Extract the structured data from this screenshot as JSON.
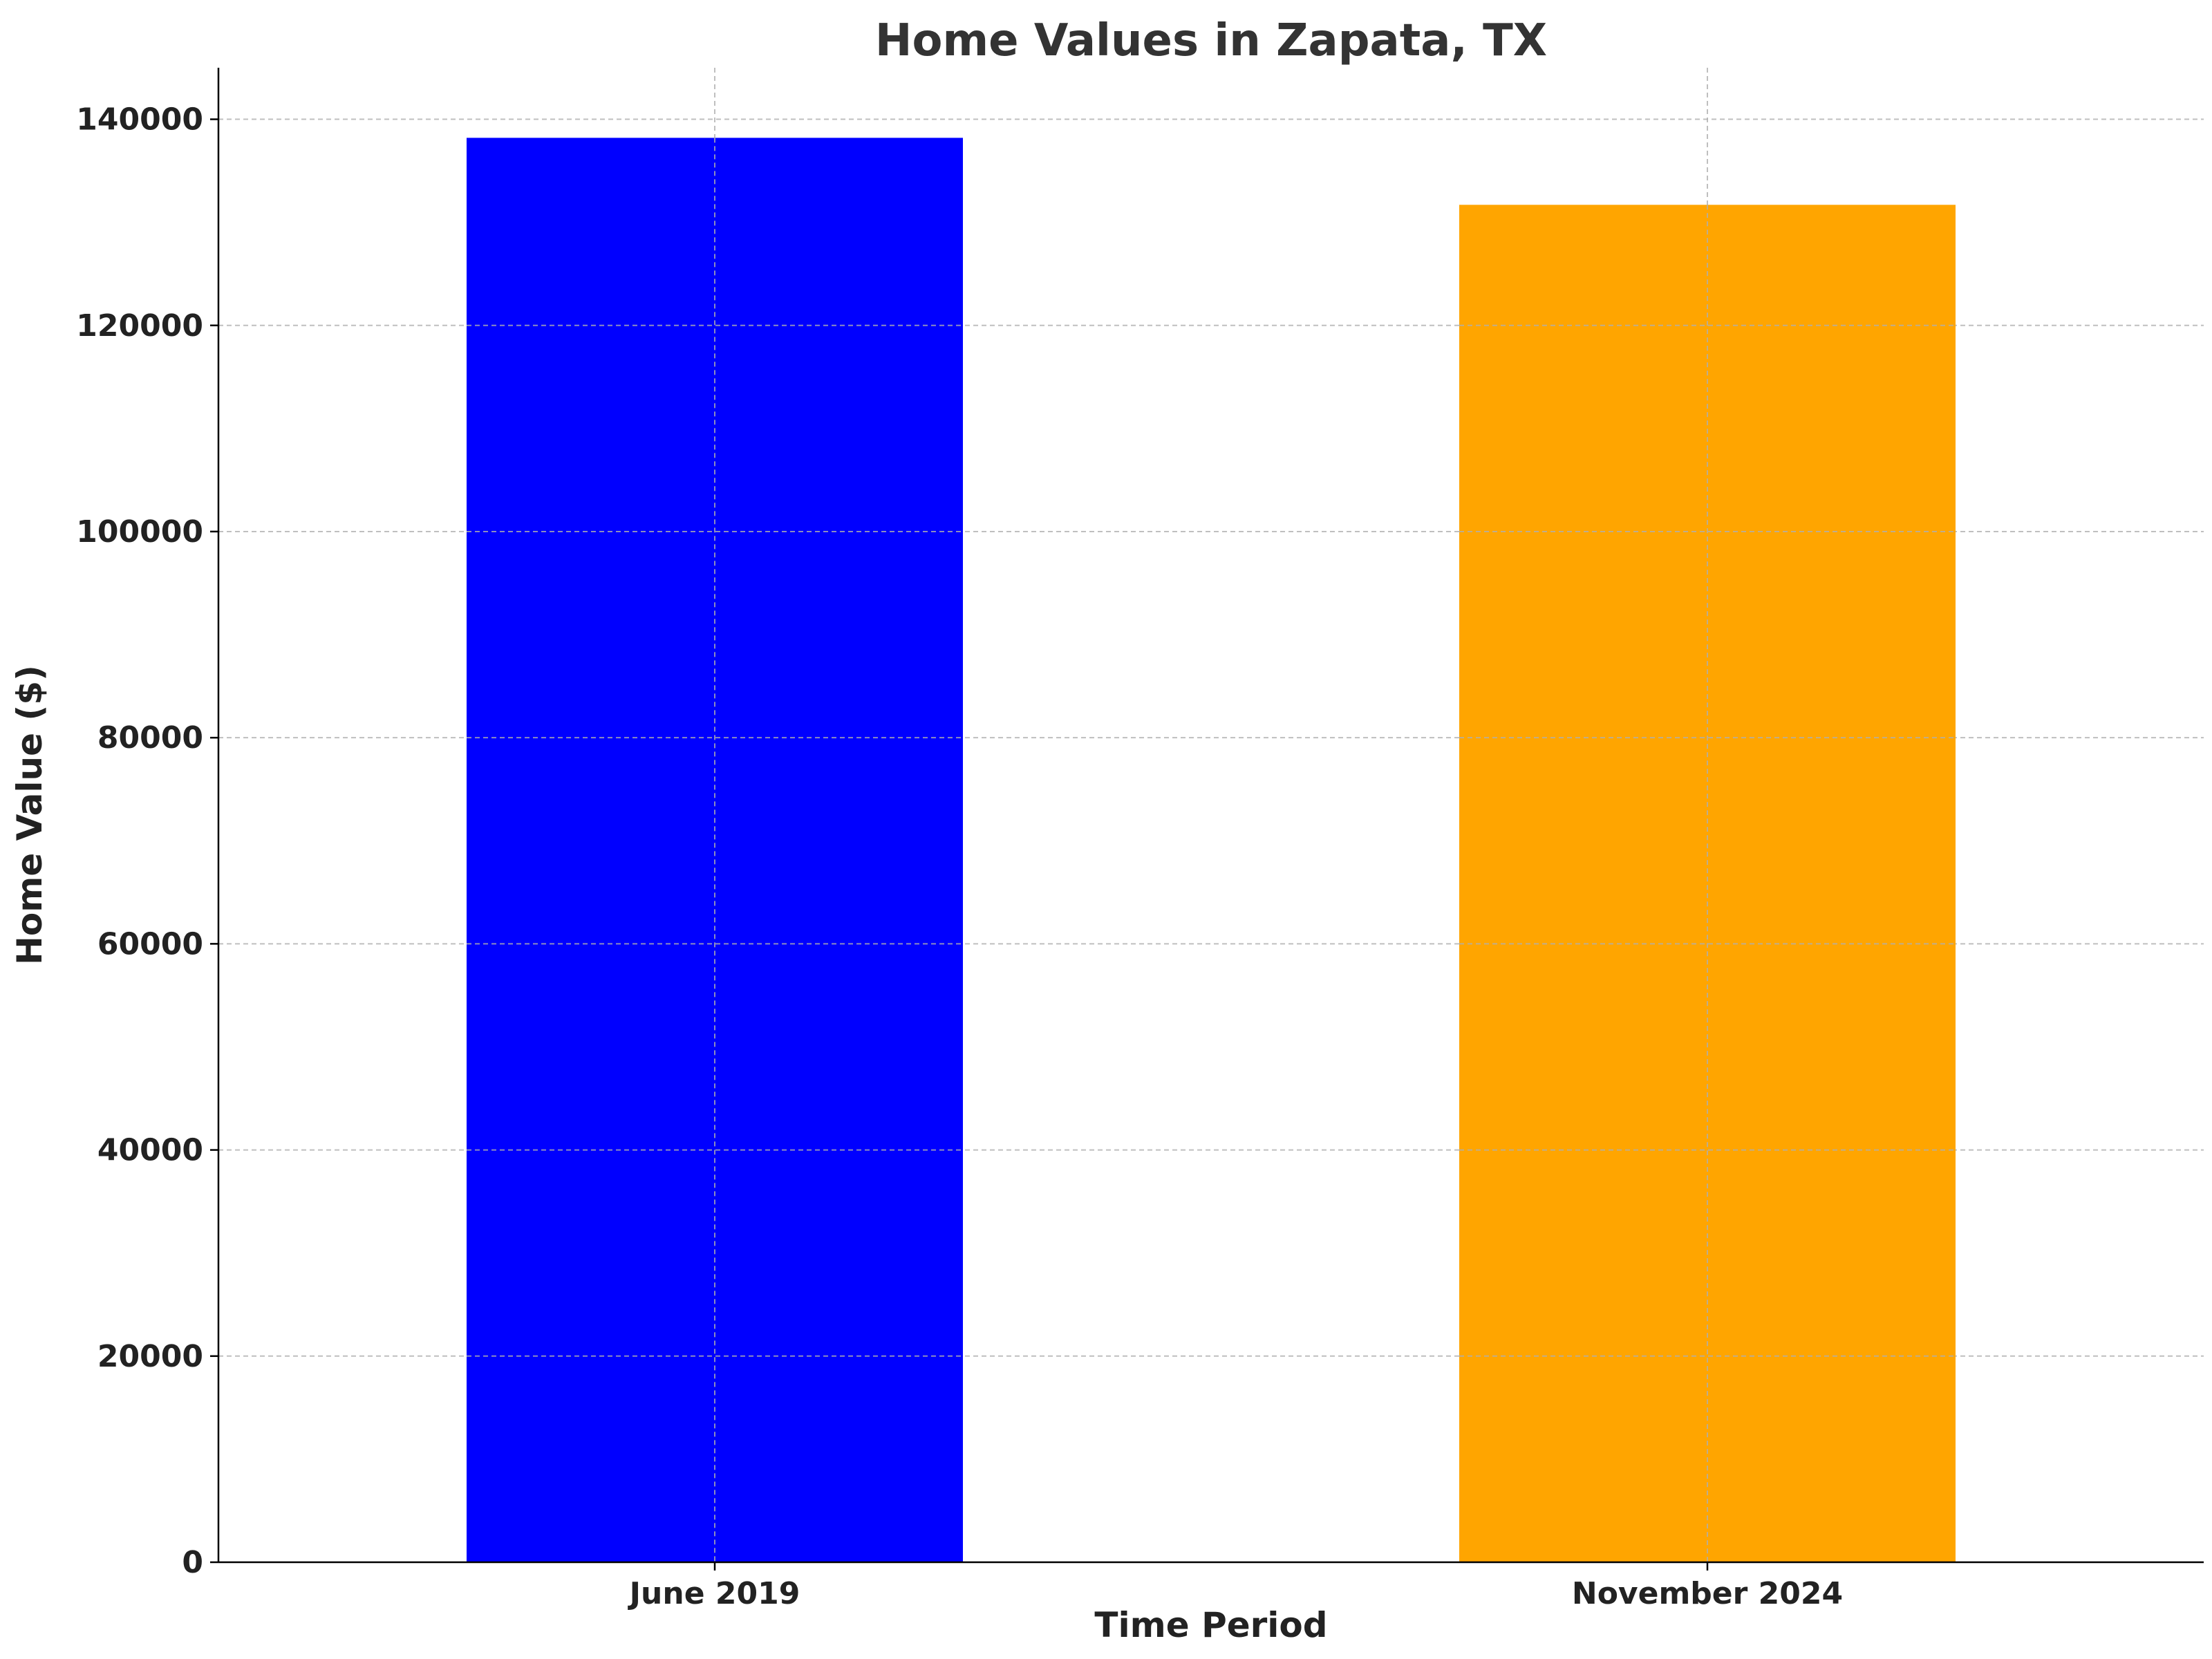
{
  "chart_data": {
    "type": "bar",
    "title": "Home Values in Zapata, TX",
    "xlabel": "Time Period",
    "ylabel": "Home Value ($)",
    "categories": [
      "June 2019",
      "November 2024"
    ],
    "values": [
      138200,
      131700
    ],
    "colors": [
      "#0000ff",
      "#ffa500"
    ],
    "ylim": [
      0,
      145000
    ],
    "yticks": [
      0,
      20000,
      40000,
      60000,
      80000,
      100000,
      120000,
      140000
    ],
    "ytick_labels": [
      "0",
      "20000",
      "40000",
      "60000",
      "80000",
      "100000",
      "120000",
      "140000"
    ],
    "grid": true,
    "legend": "none"
  }
}
